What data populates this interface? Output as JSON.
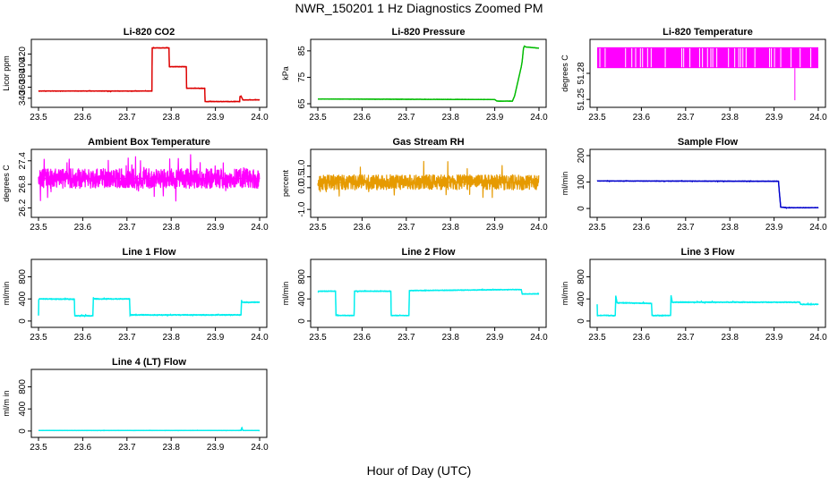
{
  "page": {
    "title": "NWR_150201  1 Hz Diagnostics Zoomed PM",
    "xlabel": "Hour of Day (UTC)"
  },
  "colors": {
    "red": "#dd0000",
    "green": "#00bb00",
    "magenta": "#ff00ff",
    "orange": "#e69a00",
    "blue": "#0000cc",
    "cyan": "#00eeee",
    "axis": "#000000"
  },
  "chart_data": [
    {
      "type": "line",
      "title": "Li-820 CO2",
      "ylabel": "Licor ppm",
      "xlim": [
        23.5,
        24.0
      ],
      "ylim": [
        330,
        440
      ],
      "xticks": [
        "23.5",
        "23.6",
        "23.7",
        "23.8",
        "23.9",
        "24.0"
      ],
      "xtick_values": [
        23.5,
        23.6,
        23.7,
        23.8,
        23.9,
        24.0
      ],
      "yticks": [
        "340",
        "360",
        "380",
        "400",
        "420"
      ],
      "ytick_values": [
        340,
        360,
        380,
        400,
        420
      ],
      "color": "red",
      "noise": 0.6,
      "series": [
        {
          "name": "CO2",
          "x": [
            23.5,
            23.7565,
            23.7571,
            23.7951,
            23.7958,
            23.8342,
            23.8349,
            23.8759,
            23.8767,
            23.955,
            23.9555,
            23.958,
            23.962,
            24.0
          ],
          "y": [
            353,
            353,
            431,
            431,
            397,
            397,
            358,
            358,
            334,
            334,
            343,
            344,
            337,
            337
          ]
        }
      ]
    },
    {
      "type": "line",
      "title": "Li-820 Pressure",
      "ylabel": "kPa",
      "xlim": [
        23.5,
        24.0
      ],
      "ylim": [
        65,
        88
      ],
      "xticks": [
        "23.5",
        "23.6",
        "23.7",
        "23.8",
        "23.9",
        "24.0"
      ],
      "xtick_values": [
        23.5,
        23.6,
        23.7,
        23.8,
        23.9,
        24.0
      ],
      "yticks": [
        "65",
        "75",
        "85"
      ],
      "ytick_values": [
        65,
        75,
        85
      ],
      "color": "green",
      "noise": 0.1,
      "series": [
        {
          "name": "Pressure",
          "x": [
            23.5,
            23.9,
            23.905,
            23.94,
            23.945,
            23.96,
            23.962,
            23.965,
            23.967,
            23.97,
            24.0
          ],
          "y": [
            66.8,
            66.6,
            66.0,
            66.0,
            68,
            79,
            81,
            86,
            86.8,
            86.5,
            86.0
          ]
        }
      ]
    },
    {
      "type": "temperature-bands",
      "title": "Li-820 Temperature",
      "ylabel": "degrees C",
      "xlim": [
        23.5,
        24.0
      ],
      "ylim": [
        51.245,
        51.315
      ],
      "xticks": [
        "23.5",
        "23.6",
        "23.7",
        "23.8",
        "23.9",
        "24.0"
      ],
      "xtick_values": [
        23.5,
        23.6,
        23.7,
        23.8,
        23.9,
        24.0
      ],
      "yticks": [
        "51.25",
        "51.28"
      ],
      "ytick_values": [
        51.25,
        51.28
      ],
      "color": "magenta",
      "band_low": 51.286,
      "band_high": 51.31,
      "dip": {
        "x": 23.947,
        "y": 51.249
      }
    },
    {
      "type": "line",
      "title": "Ambient Box Temperature",
      "ylabel": "degrees C",
      "xlim": [
        23.5,
        24.0
      ],
      "ylim": [
        26.05,
        27.6
      ],
      "xticks": [
        "23.5",
        "23.6",
        "23.7",
        "23.8",
        "23.9",
        "24.0"
      ],
      "xtick_values": [
        23.5,
        23.6,
        23.7,
        23.8,
        23.9,
        24.0
      ],
      "yticks": [
        "26.2",
        "26.8",
        "27.4"
      ],
      "ytick_values": [
        26.2,
        26.8,
        27.4
      ],
      "color": "magenta",
      "noise": 0.25,
      "series": [
        {
          "name": "Box T",
          "x": [
            23.5,
            24.0
          ],
          "y": [
            26.95,
            26.95
          ]
        }
      ]
    },
    {
      "type": "line",
      "title": "Gas Stream RH",
      "ylabel": "percent",
      "xlim": [
        23.5,
        24.0
      ],
      "ylim": [
        -1.2,
        1.6
      ],
      "xticks": [
        "23.5",
        "23.6",
        "23.7",
        "23.8",
        "23.9",
        "24.0"
      ],
      "xtick_values": [
        23.5,
        23.6,
        23.7,
        23.8,
        23.9,
        24.0
      ],
      "yticks": [
        "-1.0",
        "0.0",
        "0.5",
        "1.0"
      ],
      "ytick_values": [
        -1.0,
        0.0,
        0.5,
        1.0
      ],
      "color": "orange",
      "noise": 0.35,
      "series": [
        {
          "name": "RH",
          "x": [
            23.5,
            24.0
          ],
          "y": [
            0.25,
            0.25
          ]
        }
      ]
    },
    {
      "type": "line",
      "title": "Sample Flow",
      "ylabel": "ml/min",
      "xlim": [
        23.5,
        24.0
      ],
      "ylim": [
        -20,
        210
      ],
      "xticks": [
        "23.5",
        "23.6",
        "23.7",
        "23.8",
        "23.9",
        "24.0"
      ],
      "xtick_values": [
        23.5,
        23.6,
        23.7,
        23.8,
        23.9,
        24.0
      ],
      "yticks": [
        "0",
        "100",
        "200"
      ],
      "ytick_values": [
        0,
        100,
        200
      ],
      "color": "blue",
      "noise": 1.2,
      "series": [
        {
          "name": "Sample",
          "x": [
            23.5,
            23.91,
            23.912,
            23.915,
            23.93,
            24.0
          ],
          "y": [
            104,
            103,
            60,
            5,
            3,
            3
          ]
        }
      ]
    },
    {
      "type": "line",
      "title": "Line 1 Flow",
      "ylabel": "ml/min",
      "xlim": [
        23.5,
        24.0
      ],
      "ylim": [
        -50,
        1050
      ],
      "xticks": [
        "23.5",
        "23.6",
        "23.7",
        "23.8",
        "23.9",
        "24.0"
      ],
      "xtick_values": [
        23.5,
        23.6,
        23.7,
        23.8,
        23.9,
        24.0
      ],
      "yticks": [
        "0",
        "400",
        "800"
      ],
      "ytick_values": [
        0,
        400,
        800
      ],
      "color": "cyan",
      "noise": 10,
      "series": [
        {
          "name": "Line 1",
          "x": [
            23.5,
            23.5005,
            23.502,
            23.581,
            23.582,
            23.623,
            23.624,
            23.625,
            23.706,
            23.707,
            23.708,
            23.958,
            23.959,
            23.96,
            24.0
          ],
          "y": [
            100,
            380,
            400,
            395,
            95,
            95,
            430,
            400,
            400,
            100,
            110,
            110,
            380,
            340,
            340
          ]
        }
      ]
    },
    {
      "type": "line",
      "title": "Line 2 Flow",
      "ylabel": "ml/min",
      "xlim": [
        23.5,
        24.0
      ],
      "ylim": [
        -50,
        1050
      ],
      "xticks": [
        "23.5",
        "23.6",
        "23.7",
        "23.8",
        "23.9",
        "24.0"
      ],
      "xtick_values": [
        23.5,
        23.6,
        23.7,
        23.8,
        23.9,
        24.0
      ],
      "yticks": [
        "0",
        "400",
        "800"
      ],
      "ytick_values": [
        0,
        400,
        800
      ],
      "color": "cyan",
      "noise": 8,
      "series": [
        {
          "name": "Line 2",
          "x": [
            23.5,
            23.54,
            23.541,
            23.582,
            23.583,
            23.665,
            23.666,
            23.706,
            23.707,
            23.96,
            23.962,
            24.0
          ],
          "y": [
            540,
            540,
            100,
            100,
            540,
            540,
            100,
            100,
            550,
            570,
            490,
            490
          ]
        }
      ]
    },
    {
      "type": "line",
      "title": "Line 3 Flow",
      "ylabel": "ml/min",
      "xlim": [
        23.5,
        24.0
      ],
      "ylim": [
        -50,
        1050
      ],
      "xticks": [
        "23.5",
        "23.6",
        "23.7",
        "23.8",
        "23.9",
        "24.0"
      ],
      "xtick_values": [
        23.5,
        23.6,
        23.7,
        23.8,
        23.9,
        24.0
      ],
      "yticks": [
        "0",
        "400",
        "800"
      ],
      "ytick_values": [
        0,
        400,
        800
      ],
      "color": "cyan",
      "noise": 10,
      "series": [
        {
          "name": "Line 3",
          "x": [
            23.5,
            23.5005,
            23.501,
            23.541,
            23.542,
            23.545,
            23.623,
            23.624,
            23.666,
            23.667,
            23.67,
            23.958,
            23.96,
            24.0
          ],
          "y": [
            300,
            100,
            100,
            100,
            460,
            330,
            320,
            100,
            100,
            460,
            340,
            340,
            300,
            300
          ]
        }
      ]
    },
    {
      "type": "line",
      "title": "Line 4 (LT) Flow",
      "ylabel": "ml/m in",
      "xlim": [
        23.5,
        24.0
      ],
      "ylim": [
        -50,
        1050
      ],
      "xticks": [
        "23.5",
        "23.6",
        "23.7",
        "23.8",
        "23.9",
        "24.0"
      ],
      "xtick_values": [
        23.5,
        23.6,
        23.7,
        23.8,
        23.9,
        24.0
      ],
      "yticks": [
        "0",
        "400",
        "800"
      ],
      "ytick_values": [
        0,
        400,
        800
      ],
      "color": "cyan",
      "noise": 3,
      "series": [
        {
          "name": "Line 4",
          "x": [
            23.5,
            23.958,
            23.959,
            23.96,
            23.962,
            24.0
          ],
          "y": [
            10,
            10,
            50,
            60,
            10,
            10
          ]
        }
      ]
    }
  ]
}
